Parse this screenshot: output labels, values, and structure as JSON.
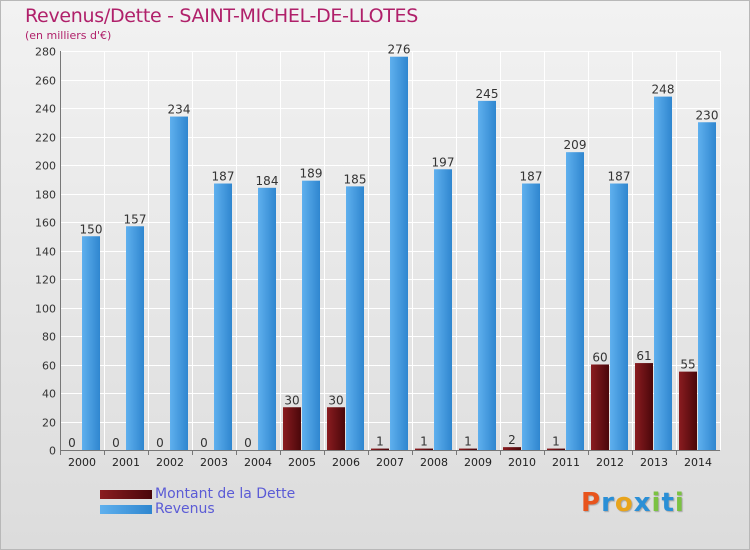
{
  "chart_data": {
    "type": "bar",
    "title": "Revenus/Dette - SAINT-MICHEL-DE-LLOTES",
    "subtitle": "(en milliers d'€)",
    "categories": [
      "2000",
      "2001",
      "2002",
      "2003",
      "2004",
      "2005",
      "2006",
      "2007",
      "2008",
      "2009",
      "2010",
      "2011",
      "2012",
      "2013",
      "2014"
    ],
    "series": [
      {
        "name": "Montant de la Dette",
        "color": "#6b0f12",
        "values": [
          0,
          0,
          0,
          0,
          0,
          30,
          30,
          1,
          1,
          1,
          2,
          1,
          60,
          61,
          55
        ]
      },
      {
        "name": "Revenus",
        "color": "#3d9ae0",
        "values": [
          150,
          157,
          234,
          187,
          184,
          189,
          185,
          276,
          197,
          245,
          187,
          209,
          187,
          248,
          230
        ]
      }
    ],
    "ylim": [
      0,
      280
    ],
    "yticks": [
      0,
      20,
      40,
      60,
      80,
      100,
      120,
      140,
      160,
      180,
      200,
      220,
      240,
      260,
      280
    ],
    "grid": true,
    "legend_position": "bottom-left"
  },
  "logo": {
    "text": "Proxiti",
    "letter_colors": [
      "#e8541c",
      "#2a8fd6",
      "#e8a41c",
      "#2a8fd6",
      "#7bc242",
      "#2a8fd6",
      "#7bc242"
    ]
  }
}
